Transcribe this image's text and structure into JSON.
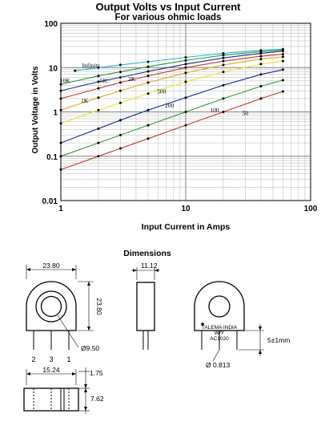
{
  "chart_data": {
    "type": "line",
    "title": "Output Volts vs Input Current",
    "subtitle": "For various ohmic loads",
    "xlabel": "Input Current in Amps",
    "ylabel": "Output Voltage in Volts",
    "xscale": "log",
    "yscale": "log",
    "xlim": [
      1,
      100
    ],
    "ylim": [
      0.01,
      100
    ],
    "grid": true,
    "x_ticks": [
      {
        "value": 1,
        "label": "1"
      },
      {
        "value": 10,
        "label": "10"
      },
      {
        "value": 100,
        "label": "100"
      }
    ],
    "y_ticks": [
      {
        "value": 100,
        "label": "100"
      },
      {
        "value": 10,
        "label": "10"
      },
      {
        "value": 1,
        "label": "1"
      },
      {
        "value": 0.1,
        "label": "0.1"
      },
      {
        "value": 0.01,
        "label": "0.01"
      }
    ],
    "series": [
      {
        "name": "Infinity",
        "color": "#20b6c8",
        "x": [
          1.3,
          2,
          3,
          5,
          10,
          20,
          40,
          60
        ],
        "y": [
          8.5,
          10,
          11.5,
          13.5,
          17,
          21,
          24.5,
          26
        ]
      },
      {
        "name": "10K",
        "color": "#2f9a3e",
        "x": [
          1,
          2,
          3,
          5,
          10,
          20,
          40,
          60
        ],
        "y": [
          4.2,
          6.5,
          8,
          10.5,
          14.5,
          19,
          23,
          25
        ]
      },
      {
        "name": "5K",
        "color": "#1a2a8a",
        "x": [
          1,
          2,
          3,
          5,
          10,
          20,
          40,
          60
        ],
        "y": [
          3,
          4.8,
          6,
          8.2,
          12,
          16.5,
          21,
          23.5
        ]
      },
      {
        "name": "2K",
        "color": "#c0392b",
        "x": [
          1,
          2,
          3,
          5,
          10,
          20,
          40,
          60
        ],
        "y": [
          2,
          3.4,
          4.6,
          6.5,
          10,
          14,
          18,
          20
        ]
      },
      {
        "name": "1K",
        "color": "#e6a817",
        "x": [
          1,
          2,
          3,
          5,
          10,
          20,
          40,
          60
        ],
        "y": [
          1.1,
          2.1,
          3,
          4.6,
          7.6,
          11.5,
          15.5,
          17.5
        ]
      },
      {
        "name": "500",
        "color": "#e8e62e",
        "x": [
          1,
          2,
          3,
          5,
          10,
          20,
          40,
          60
        ],
        "y": [
          0.55,
          1.1,
          1.6,
          2.6,
          4.8,
          8,
          12,
          14
        ]
      },
      {
        "name": "200",
        "color": "#1c2f9c",
        "x": [
          1,
          2,
          3,
          5,
          10,
          20,
          40,
          60
        ],
        "y": [
          0.2,
          0.42,
          0.65,
          1.1,
          2.1,
          4,
          7,
          9
        ]
      },
      {
        "name": "100",
        "color": "#2e9a32",
        "x": [
          1,
          2,
          3,
          5,
          10,
          20,
          40,
          60
        ],
        "y": [
          0.1,
          0.2,
          0.3,
          0.5,
          1,
          2,
          3.8,
          5.2
        ]
      },
      {
        "name": "50",
        "color": "#c0392b",
        "x": [
          1,
          2,
          3,
          5,
          10,
          20,
          40,
          60
        ],
        "y": [
          0.05,
          0.1,
          0.15,
          0.25,
          0.5,
          1,
          2,
          2.9
        ]
      }
    ],
    "annotations": [
      {
        "text": "Infinity",
        "x": 1.75,
        "y": 10.2
      },
      {
        "text": "10K",
        "x": 1.08,
        "y": 4.6
      },
      {
        "text": "5K",
        "x": 2.2,
        "y": 4.6
      },
      {
        "text": "2K",
        "x": 3.7,
        "y": 5.0
      },
      {
        "text": "1K",
        "x": 1.55,
        "y": 1.6
      },
      {
        "text": "500",
        "x": 6.4,
        "y": 2.6
      },
      {
        "text": "200",
        "x": 7.4,
        "y": 1.25
      },
      {
        "text": "100",
        "x": 17,
        "y": 1.0
      },
      {
        "text": "50",
        "x": 30,
        "y": 0.85
      }
    ]
  },
  "dimensions": {
    "heading": "Dimensions",
    "width_label": "23.80",
    "height_label": "23.80",
    "depth_label": "11.12",
    "hole_label": "Ø9.50",
    "pin_labels": [
      "2",
      "3",
      "1"
    ],
    "device_text_line1": "TALEMA INDIA",
    "device_text_line2": "W/Y",
    "device_text_line3": "AC1020",
    "pin_length_label": "5±1mm",
    "pin_dia_label": "Ø 0.813",
    "pin_span_label": "15.24",
    "pin_offset_label": "1.75",
    "pin_row_label": "7.62"
  }
}
